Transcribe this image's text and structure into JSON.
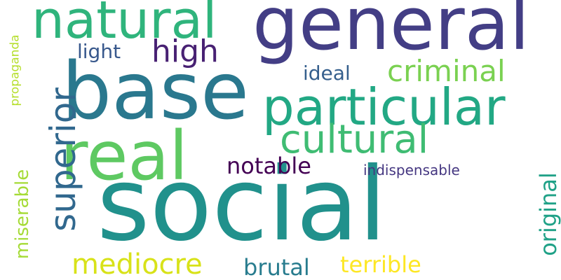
{
  "wordcloud": {
    "words": [
      {
        "key": "social",
        "text": "social",
        "color": "#21918c"
      },
      {
        "key": "general",
        "text": "general",
        "color": "#433e85"
      },
      {
        "key": "base",
        "text": "base",
        "color": "#2a788e"
      },
      {
        "key": "real",
        "text": "real",
        "color": "#5ec962"
      },
      {
        "key": "particular",
        "text": "particular",
        "color": "#22a884"
      },
      {
        "key": "natural",
        "text": "natural",
        "color": "#2fb47c"
      },
      {
        "key": "cultural",
        "text": "cultural",
        "color": "#3fbc73"
      },
      {
        "key": "criminal",
        "text": "criminal",
        "color": "#7ad151"
      },
      {
        "key": "high",
        "text": "high",
        "color": "#482173"
      },
      {
        "key": "mediocre",
        "text": "mediocre",
        "color": "#d8e219"
      },
      {
        "key": "superior",
        "text": "superior",
        "color": "#31688e"
      },
      {
        "key": "original",
        "text": "original",
        "color": "#1fa187"
      },
      {
        "key": "miserable",
        "text": "miserable",
        "color": "#a5db36"
      },
      {
        "key": "propaganda",
        "text": "propaganda",
        "color": "#b5de2b"
      },
      {
        "key": "brutal",
        "text": "brutal",
        "color": "#287c8e"
      },
      {
        "key": "terrible",
        "text": "terrible",
        "color": "#fde725"
      },
      {
        "key": "notable",
        "text": "notable",
        "color": "#440154"
      },
      {
        "key": "ideal",
        "text": "ideal",
        "color": "#355f8d"
      },
      {
        "key": "light",
        "text": "light",
        "color": "#38588c"
      },
      {
        "key": "indispensable",
        "text": "indispensable",
        "color": "#453781"
      }
    ]
  }
}
